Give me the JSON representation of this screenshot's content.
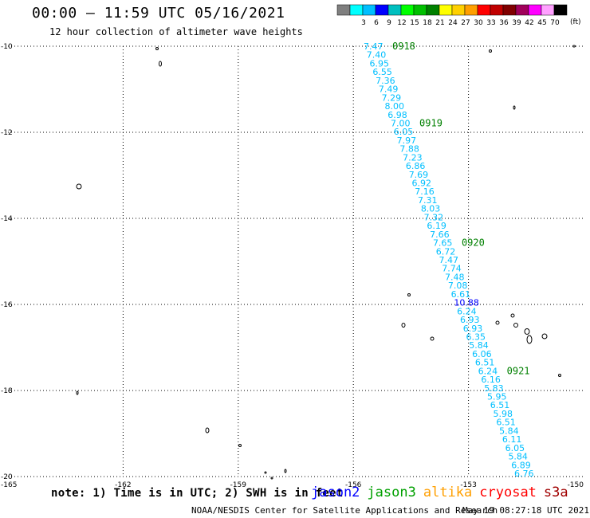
{
  "title": "00:00 – 11:59 UTC 05/16/2021",
  "subtitle": "12 hour collection of altimeter wave heights",
  "legend": {
    "unit": "(ft)",
    "boxes": [
      {
        "color": "#7f7f7f",
        "label": ""
      },
      {
        "color": "#00ffff",
        "label": "3"
      },
      {
        "color": "#00bfff",
        "label": "6"
      },
      {
        "color": "#0000ff",
        "label": "9"
      },
      {
        "color": "#00bfbf",
        "label": "12"
      },
      {
        "color": "#00ff00",
        "label": "15"
      },
      {
        "color": "#00c000",
        "label": "18"
      },
      {
        "color": "#008000",
        "label": "21"
      },
      {
        "color": "#ffff00",
        "label": "24"
      },
      {
        "color": "#ffd000",
        "label": "27"
      },
      {
        "color": "#ff9f00",
        "label": "30"
      },
      {
        "color": "#ff0000",
        "label": "33"
      },
      {
        "color": "#c00000",
        "label": "36"
      },
      {
        "color": "#800000",
        "label": "39"
      },
      {
        "color": "#a0005a",
        "label": "42"
      },
      {
        "color": "#ff00ff",
        "label": "45"
      },
      {
        "color": "#ffa0ff",
        "label": "70"
      },
      {
        "color": "#000000",
        "label": ""
      }
    ]
  },
  "axes": {
    "lon_ticks": [
      "-165",
      "-162",
      "-159",
      "-156",
      "-153",
      "-150"
    ],
    "lat_ticks": [
      "-10",
      "-12",
      "-14",
      "-16",
      "-18",
      "-20"
    ],
    "lon_range": [
      -165,
      -150
    ],
    "lat_range": [
      -20,
      -10
    ]
  },
  "track": {
    "color_default": "#00bfff",
    "color_high": "#0000ff",
    "swh_values": [
      "7.47",
      "7.40",
      "6.95",
      "6.55",
      "7.36",
      "7.49",
      "7.29",
      "8.00",
      "6.98",
      "7.00",
      "6.05",
      "7.97",
      "7.88",
      "7.23",
      "6.86",
      "7.69",
      "6.92",
      "7.16",
      "7.31",
      "8.03",
      "7.32",
      "6.19",
      "7.66",
      "7.65",
      "6.72",
      "7.47",
      "7.74",
      "7.48",
      "7.08",
      "6.61",
      "10.88",
      "6.24",
      "6.93",
      "6.93",
      "6.35",
      "5.84",
      "6.06",
      "6.51",
      "6.24",
      "6.16",
      "5.83",
      "5.95",
      "6.51",
      "5.98",
      "6.51",
      "5.84",
      "6.11",
      "6.05",
      "5.84",
      "6.89",
      "6.76"
    ],
    "high_index": 30,
    "time_labels": [
      {
        "text": "0918",
        "row": 0
      },
      {
        "text": "0919",
        "row": 9
      },
      {
        "text": "0920",
        "row": 23
      },
      {
        "text": "0921",
        "row": 38
      }
    ],
    "time_color": "#008000"
  },
  "note": "note: 1) Time is in UTC; 2) SWH is in feet",
  "satellites": [
    {
      "name": "jason2",
      "color": "#0000ff"
    },
    {
      "name": "jason3",
      "color": "#00a000"
    },
    {
      "name": "altika",
      "color": "#ff9f00"
    },
    {
      "name": "cryosat",
      "color": "#ff0000"
    },
    {
      "name": "s3a",
      "color": "#a00000"
    }
  ],
  "credit": "NOAA/NESDIS Center for Satellite Applications and Research",
  "timestamp": "May 19 08:27:18 UTC 2021"
}
